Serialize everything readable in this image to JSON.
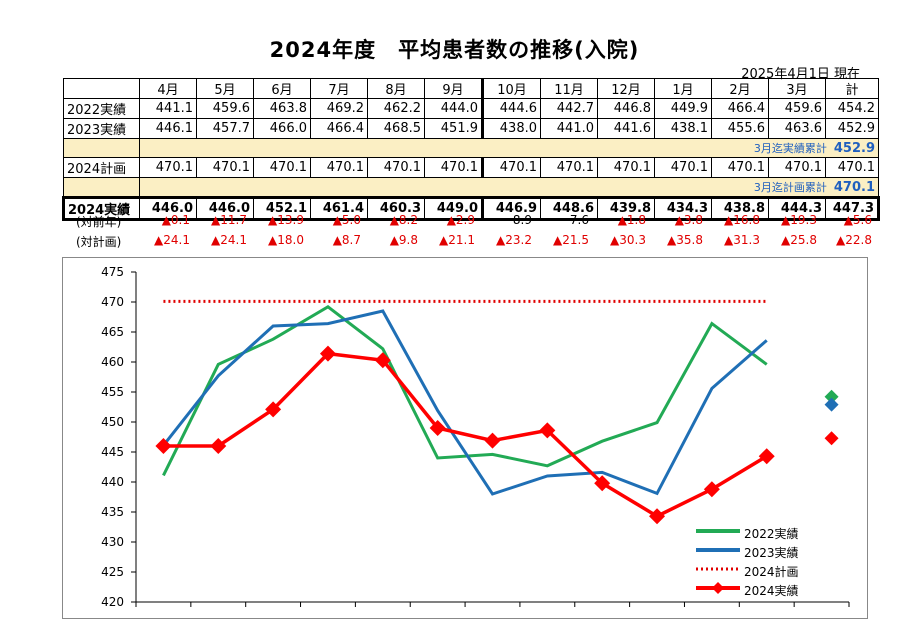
{
  "title": "2024年度　平均患者数の推移(入院)",
  "as_of": "2025年4月1日 現在",
  "table": {
    "columns": [
      "4月",
      "5月",
      "6月",
      "7月",
      "8月",
      "9月",
      "10月",
      "11月",
      "12月",
      "1月",
      "2月",
      "3月",
      "計"
    ],
    "rows": [
      {
        "label": "2022実績",
        "values": [
          "441.1",
          "459.6",
          "463.8",
          "469.2",
          "462.2",
          "444.0",
          "444.6",
          "442.7",
          "446.8",
          "449.9",
          "466.4",
          "459.6",
          "454.2"
        ]
      },
      {
        "label": "2023実績",
        "values": [
          "446.1",
          "457.7",
          "466.0",
          "466.4",
          "468.5",
          "451.9",
          "438.0",
          "441.0",
          "441.6",
          "438.1",
          "455.6",
          "463.6",
          "452.9"
        ]
      },
      {
        "cum_label": "3月迄実績累計",
        "cum_value": "452.9"
      },
      {
        "label": "2024計画",
        "values": [
          "470.1",
          "470.1",
          "470.1",
          "470.1",
          "470.1",
          "470.1",
          "470.1",
          "470.1",
          "470.1",
          "470.1",
          "470.1",
          "470.1",
          "470.1"
        ]
      },
      {
        "cum_label": "3月迄計画累計",
        "cum_value": "470.1"
      },
      {
        "label": "2024実績",
        "values": [
          "446.0",
          "446.0",
          "452.1",
          "461.4",
          "460.3",
          "449.0",
          "446.9",
          "448.6",
          "439.8",
          "434.3",
          "438.8",
          "444.3",
          "447.3"
        ]
      }
    ],
    "vs_prev_label": "(対前年)",
    "vs_prev": [
      {
        "t": "▲0.1",
        "neg": true
      },
      {
        "t": "▲11.7",
        "neg": true
      },
      {
        "t": "▲13.9",
        "neg": true
      },
      {
        "t": "▲5.0",
        "neg": true
      },
      {
        "t": "▲8.2",
        "neg": true
      },
      {
        "t": "▲2.9",
        "neg": true
      },
      {
        "t": "8.9",
        "neg": false
      },
      {
        "t": "7.6",
        "neg": false
      },
      {
        "t": "▲1.8",
        "neg": true
      },
      {
        "t": "▲3.8",
        "neg": true
      },
      {
        "t": "▲16.8",
        "neg": true
      },
      {
        "t": "▲19.3",
        "neg": true
      },
      {
        "t": "▲5.6",
        "neg": true
      }
    ],
    "vs_plan_label": "(対計画)",
    "vs_plan": [
      {
        "t": "▲24.1",
        "neg": true
      },
      {
        "t": "▲24.1",
        "neg": true
      },
      {
        "t": "▲18.0",
        "neg": true
      },
      {
        "t": "▲8.7",
        "neg": true
      },
      {
        "t": "▲9.8",
        "neg": true
      },
      {
        "t": "▲21.1",
        "neg": true
      },
      {
        "t": "▲23.2",
        "neg": true
      },
      {
        "t": "▲21.5",
        "neg": true
      },
      {
        "t": "▲30.3",
        "neg": true
      },
      {
        "t": "▲35.8",
        "neg": true
      },
      {
        "t": "▲31.3",
        "neg": true
      },
      {
        "t": "▲25.8",
        "neg": true
      },
      {
        "t": "▲22.8",
        "neg": true
      }
    ]
  },
  "chart_data": {
    "type": "line",
    "categories": [
      "4月",
      "5月",
      "6月",
      "7月",
      "8月",
      "9月",
      "10月",
      "11月",
      "12月",
      "1月",
      "2月",
      "3月"
    ],
    "ylim": [
      420,
      475
    ],
    "yticks": [
      "475",
      "470",
      "465",
      "460",
      "455",
      "450",
      "445",
      "440",
      "435",
      "430",
      "425",
      "420"
    ],
    "grid": false,
    "legend_position": "bottom-right",
    "series": [
      {
        "name": "2022実績",
        "color": "#22aa55",
        "style": "solid",
        "values": [
          441.1,
          459.6,
          463.8,
          469.2,
          462.2,
          444.0,
          444.6,
          442.7,
          446.8,
          449.9,
          466.4,
          459.6
        ],
        "total": 454.2
      },
      {
        "name": "2023実績",
        "color": "#1f6fb5",
        "style": "solid",
        "values": [
          446.1,
          457.7,
          466.0,
          466.4,
          468.5,
          451.9,
          438.0,
          441.0,
          441.6,
          438.1,
          455.6,
          463.6
        ],
        "total": 452.9
      },
      {
        "name": "2024計画",
        "color": "#e00000",
        "style": "dotted",
        "values": [
          470.1,
          470.1,
          470.1,
          470.1,
          470.1,
          470.1,
          470.1,
          470.1,
          470.1,
          470.1,
          470.1,
          470.1
        ]
      },
      {
        "name": "2024実績",
        "color": "#ff0000",
        "style": "diamond",
        "values": [
          446.0,
          446.0,
          452.1,
          461.4,
          460.3,
          449.0,
          446.9,
          448.6,
          439.8,
          434.3,
          438.8,
          444.3
        ],
        "total": 447.3
      }
    ]
  }
}
